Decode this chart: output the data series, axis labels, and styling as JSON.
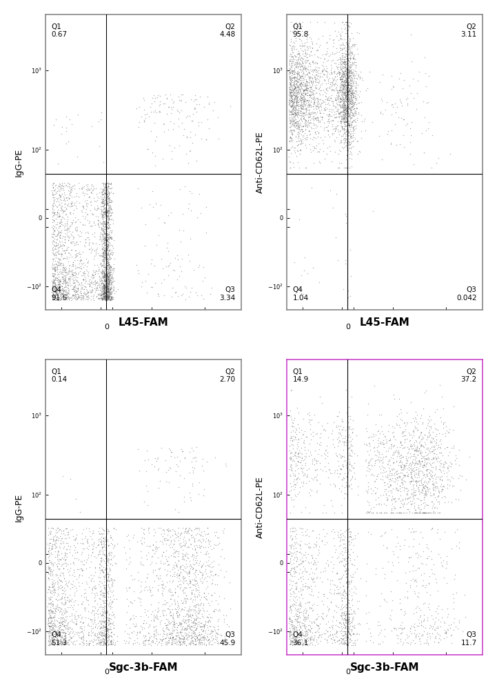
{
  "panels": [
    {
      "row": 0,
      "col": 0,
      "ylabel": "IgG-PE",
      "xlabel": "L45-FAM",
      "quadrants": {
        "Q1": "0.67",
        "Q2": "4.48",
        "Q3": "3.34",
        "Q4": "91.5"
      },
      "gate_x": 0,
      "gate_y": 50,
      "border_color": "#888888",
      "data_profile": "L45_IgG"
    },
    {
      "row": 0,
      "col": 1,
      "ylabel": "Anti-CD62L-PE",
      "xlabel": "L45-FAM",
      "quadrants": {
        "Q1": "95.8",
        "Q2": "3.11",
        "Q3": "0.042",
        "Q4": "1.04"
      },
      "gate_x": 0,
      "gate_y": 50,
      "border_color": "#888888",
      "data_profile": "L45_AntiCD62L"
    },
    {
      "row": 1,
      "col": 0,
      "ylabel": "IgG-PE",
      "xlabel": "Sgc-3b-FAM",
      "quadrants": {
        "Q1": "0.14",
        "Q2": "2.70",
        "Q3": "45.9",
        "Q4": "51.3"
      },
      "gate_x": 0,
      "gate_y": 50,
      "border_color": "#888888",
      "data_profile": "Sgc_IgG"
    },
    {
      "row": 1,
      "col": 1,
      "ylabel": "Anti-CD62L-PE",
      "xlabel": "Sgc-3b-FAM",
      "quadrants": {
        "Q1": "14.9",
        "Q2": "37.2",
        "Q3": "11.7",
        "Q4": "36.1"
      },
      "gate_x": 0,
      "gate_y": 50,
      "border_color": "#cc44cc",
      "data_profile": "Sgc_AntiCD62L"
    }
  ],
  "xlim": [
    -200,
    5000
  ],
  "ylim": [
    -200,
    5000
  ],
  "log_threshold": 50,
  "dot_color": "#555555",
  "dot_size": 1.0,
  "dot_alpha": 0.5,
  "background": "#ffffff",
  "text_color": "#000000"
}
